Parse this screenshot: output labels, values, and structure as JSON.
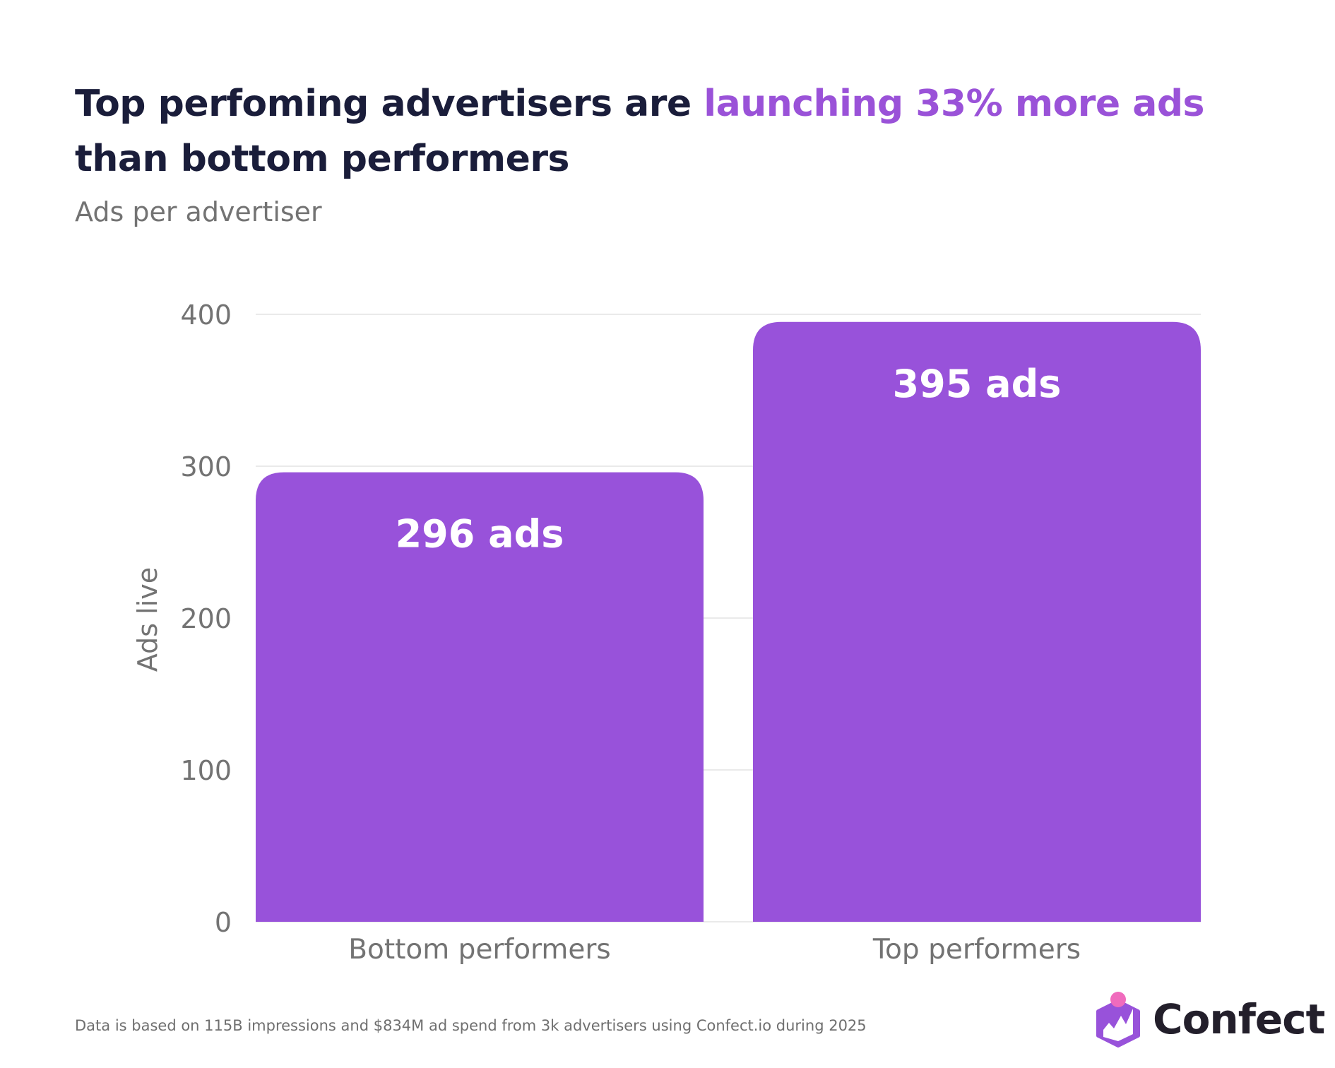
{
  "header": {
    "title_part1": "Top perfoming advertisers are ",
    "title_highlight": "launching 33% more ads",
    "title_part2": " than bottom performers",
    "subtitle": "Ads per advertiser"
  },
  "chart_data": {
    "type": "bar",
    "title": "Top perfoming advertisers are launching 33% more ads than bottom performers",
    "subtitle": "Ads per advertiser",
    "categories": [
      "Bottom performers",
      "Top performers"
    ],
    "values": [
      296,
      395
    ],
    "data_labels": [
      "296 ads",
      "395 ads"
    ],
    "xlabel": "",
    "ylabel": "Ads live",
    "ylim": [
      0,
      400
    ],
    "yticks": [
      0,
      100,
      200,
      300,
      400
    ],
    "ytick_labels": [
      "0",
      "100",
      "200",
      "300",
      "400"
    ],
    "grid": true,
    "legend": "none",
    "colors": {
      "bar": "#9852da",
      "bar_label": "#ffffff",
      "grid": "#e3e3e3",
      "tick_text": "#737373"
    }
  },
  "footer": {
    "note": "Data is based on 115B impressions and $834M ad spend from 3k advertisers using Confect.io during 2025",
    "logo_text": "Confect"
  },
  "colors": {
    "title": "#1a1d3a",
    "highlight": "#9a52d8",
    "logo_purple": "#9852da",
    "logo_pink": "#f06bbd"
  }
}
